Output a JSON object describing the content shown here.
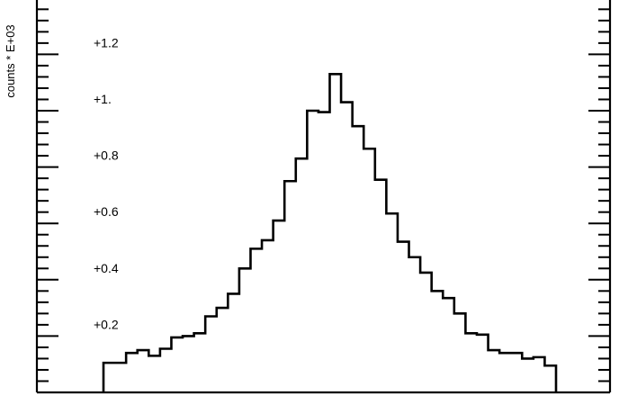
{
  "chart_data": {
    "type": "histogram",
    "title": "",
    "xlabel": "",
    "ylabel": "counts * E+03",
    "ylim": [
      0,
      1.38
    ],
    "y_tick_labels": [
      {
        "value": 0.2,
        "label": "+0.2"
      },
      {
        "value": 0.4,
        "label": "+0.4"
      },
      {
        "value": 0.6,
        "label": "+0.6"
      },
      {
        "value": 0.8,
        "label": "+0.8"
      },
      {
        "value": 1.0,
        "label": "+1."
      },
      {
        "value": 1.2,
        "label": "+1.2"
      }
    ],
    "minor_tick_step": 0.04,
    "bins": 40,
    "values": [
      0.105,
      0.105,
      0.14,
      0.15,
      0.13,
      0.155,
      0.195,
      0.2,
      0.21,
      0.27,
      0.3,
      0.35,
      0.44,
      0.51,
      0.54,
      0.61,
      0.75,
      0.83,
      1.0,
      0.995,
      1.13,
      1.03,
      0.945,
      0.865,
      0.755,
      0.635,
      0.535,
      0.48,
      0.425,
      0.36,
      0.335,
      0.28,
      0.21,
      0.205,
      0.15,
      0.14,
      0.14,
      0.12,
      0.125,
      0.095
    ],
    "grid": false,
    "legend": "none"
  }
}
